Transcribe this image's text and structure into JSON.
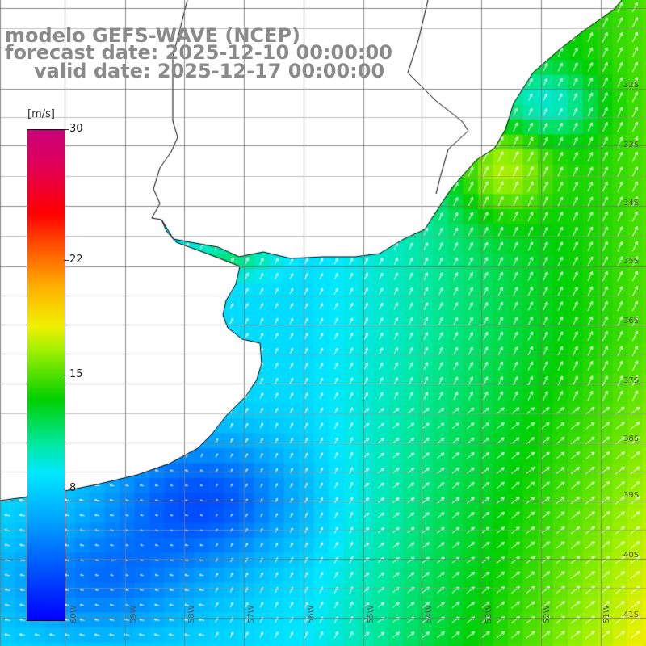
{
  "title": {
    "line1": "modelo GEFS-WAVE (NCEP)",
    "line2": "forecast date: 2025-12-10 00:00:00",
    "line3": "valid date: 2025-12-17 00:00:00"
  },
  "colorbar": {
    "unit": "[m/s]",
    "min": 0,
    "max": 30,
    "ticks": [
      {
        "label": "30",
        "value": 30
      },
      {
        "label": "22",
        "value": 22
      },
      {
        "label": "15",
        "value": 15
      },
      {
        "label": "8",
        "value": 8
      }
    ]
  },
  "latitude_labels": [
    "32S",
    "33S",
    "34S",
    "35S",
    "36S",
    "37S",
    "38S",
    "39S",
    "40S",
    "41S"
  ],
  "longitude_labels": [
    "60W",
    "59W",
    "58W",
    "57W",
    "56W",
    "55W",
    "54W",
    "53W",
    "52W",
    "51W"
  ],
  "colors": {
    "land": "#ffffff",
    "coastline": "#000000",
    "grid": "#7f7f7f",
    "arrows": "#ffffff",
    "title": "#8a8a8a"
  },
  "map_content": {
    "field": "wind speed with direction arrows over ocean",
    "wind_direction": "mostly toward north-northeast / northeast"
  }
}
